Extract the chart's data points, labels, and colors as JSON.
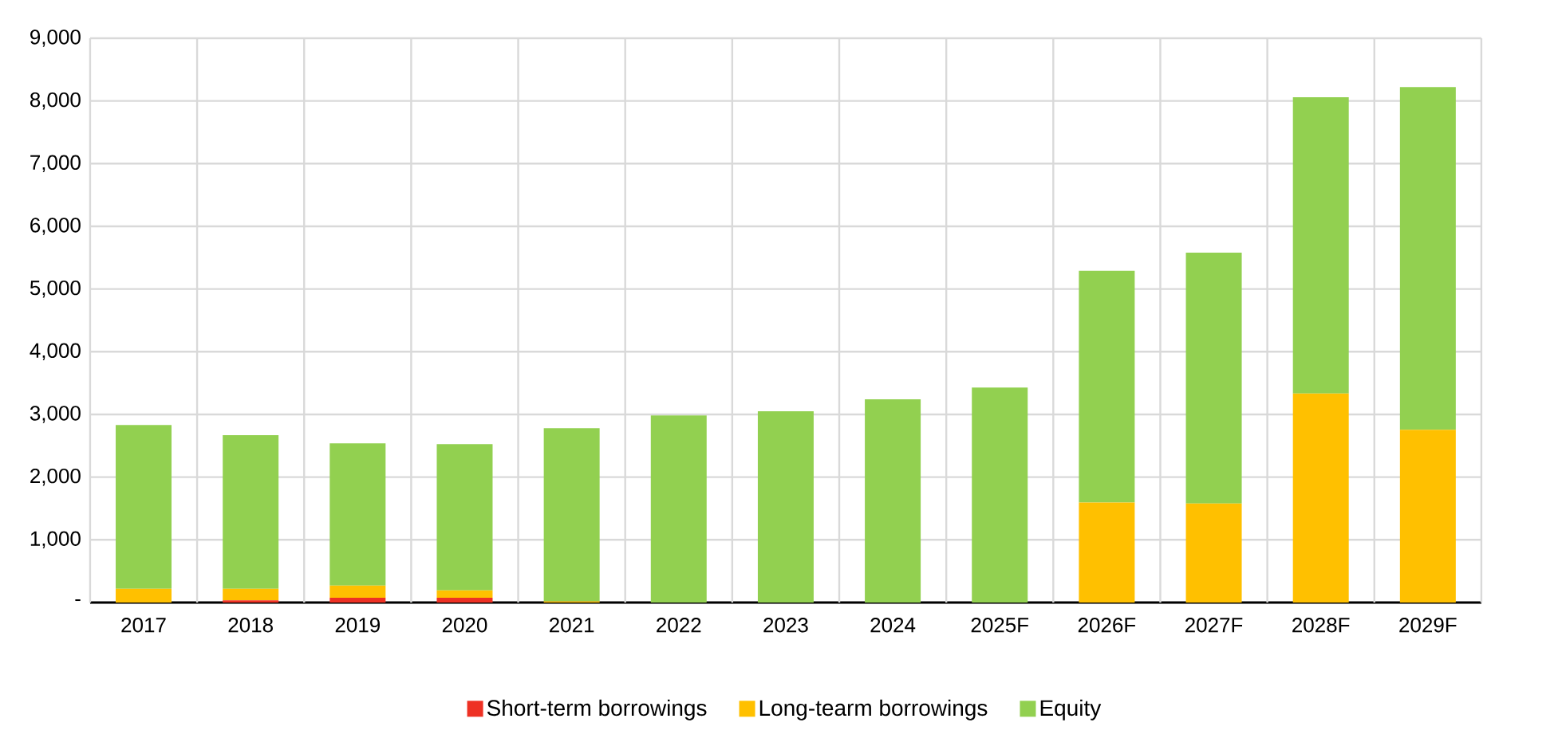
{
  "chart_data": {
    "type": "bar",
    "stacked": true,
    "categories": [
      "2017",
      "2018",
      "2019",
      "2020",
      "2021",
      "2022",
      "2023",
      "2024",
      "2025F",
      "2026F",
      "2027F",
      "2028F",
      "2029F"
    ],
    "series": [
      {
        "name": "Short-term borrowings",
        "color": "#ee3124",
        "values": [
          0,
          35,
          75,
          75,
          0,
          0,
          0,
          0,
          0,
          0,
          0,
          0,
          0
        ]
      },
      {
        "name": "Long-tearm borrowings",
        "color": "#ffc000",
        "values": [
          220,
          185,
          195,
          120,
          20,
          0,
          0,
          0,
          0,
          1595,
          1580,
          3335,
          2755
        ]
      },
      {
        "name": "Equity",
        "color": "#92d050",
        "values": [
          2610,
          2450,
          2270,
          2330,
          2760,
          2985,
          3050,
          3240,
          3430,
          3695,
          4000,
          4725,
          5465
        ]
      }
    ],
    "ylim": [
      0,
      9000
    ],
    "yticks": [
      {
        "value": 0,
        "label": "-"
      },
      {
        "value": 1000,
        "label": "1,000"
      },
      {
        "value": 2000,
        "label": "2,000"
      },
      {
        "value": 3000,
        "label": "3,000"
      },
      {
        "value": 4000,
        "label": "4,000"
      },
      {
        "value": 5000,
        "label": "5,000"
      },
      {
        "value": 6000,
        "label": "6,000"
      },
      {
        "value": 7000,
        "label": "7,000"
      },
      {
        "value": 8000,
        "label": "8,000"
      },
      {
        "value": 9000,
        "label": "9,000"
      }
    ],
    "grid": true,
    "legend": "bottom"
  }
}
